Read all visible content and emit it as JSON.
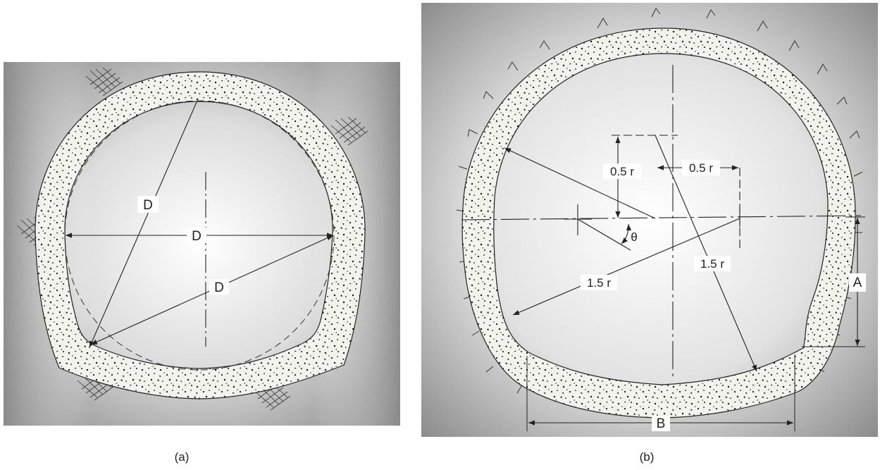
{
  "figures": [
    {
      "caption": "(a)",
      "labels": {
        "diameter_vertical": "D",
        "diameter_horizontal": "D",
        "diameter_diagonal": "D"
      }
    },
    {
      "caption": "(b)",
      "labels": {
        "vertical_offset": "0.5 r",
        "horizontal_offset": "0.5 r",
        "angle": "θ",
        "radius_left": "1.5 r",
        "radius_right": "1.5 r",
        "dim_a": "A",
        "dim_b": "B"
      }
    }
  ],
  "colors": {
    "line": "#222222",
    "lining_fill": "#eeeeea",
    "rock_shade": "#8e8e8e"
  }
}
